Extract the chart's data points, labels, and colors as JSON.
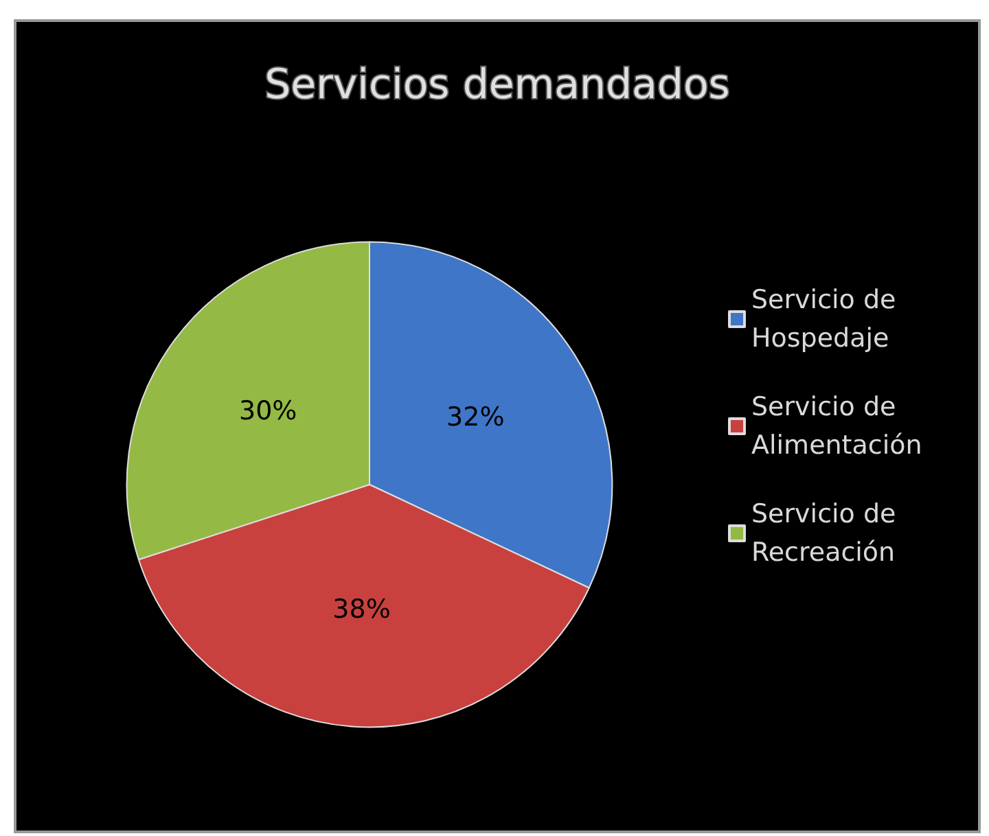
{
  "chart_data": {
    "type": "pie",
    "title": "Servicios demandados",
    "categories": [
      "Servicio de Hospedaje",
      "Servicio de Alimentación",
      "Servicio de Recreación"
    ],
    "values": [
      32,
      38,
      30
    ],
    "value_labels": [
      "32%",
      "38%",
      "30%"
    ],
    "colors": [
      "#3f76c8",
      "#c8413e",
      "#94b945"
    ],
    "legend": "right"
  }
}
